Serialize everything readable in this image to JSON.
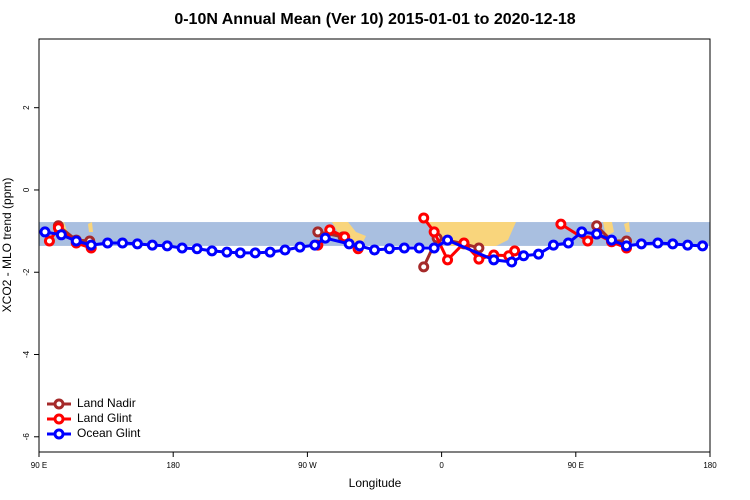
{
  "chart_data": {
    "type": "line",
    "title": "0-10N Annual Mean (Ver 10)   2015-01-01 to 2020-12-18",
    "x_label": "Longitude",
    "y_label": "XCO2 - MLO trend (ppm)",
    "xlim": [
      90,
      540
    ],
    "ylim": [
      -6.37,
      3.67
    ],
    "xticks": [
      {
        "value": 90,
        "label": "90 E"
      },
      180,
      {
        "value": 270,
        "label": "90 W"
      },
      {
        "value": 360,
        "label": "0"
      },
      {
        "value": 450,
        "label": "90 E"
      },
      {
        "value": 540,
        "label": "180"
      }
    ],
    "yticks": [
      -6,
      -4,
      -2,
      0,
      2
    ],
    "band": {
      "ymin": -1.36,
      "ymax": -0.78,
      "color": "#a9bfe0"
    },
    "legend": "bottom-left",
    "series": [
      {
        "name": "Land Nadir",
        "color": "#a52a2a",
        "x": [
          103,
          115,
          124,
          null,
          277,
          294,
          null,
          348,
          357,
          375,
          385,
          null,
          464,
          474,
          484
        ],
        "values": [
          -0.87,
          -1.22,
          -1.24,
          null,
          -1.02,
          -1.14,
          null,
          -1.87,
          -1.17,
          -1.31,
          -1.41,
          null,
          -0.87,
          -1.24,
          -1.24
        ]
      },
      {
        "name": "Land Glint",
        "color": "#ff0000",
        "x": [
          97,
          103,
          115,
          125,
          null,
          277,
          285,
          295,
          304,
          null,
          348,
          355,
          364,
          375,
          385,
          395,
          405,
          409,
          null,
          440,
          458,
          464,
          474,
          484
        ],
        "values": [
          -1.24,
          -0.92,
          -1.29,
          -1.41,
          null,
          -1.34,
          -0.97,
          -1.14,
          -1.43,
          null,
          -0.68,
          -1.02,
          -1.7,
          -1.29,
          -1.68,
          -1.58,
          -1.6,
          -1.48,
          null,
          -0.83,
          -1.24,
          -1.07,
          -1.26,
          -1.41
        ]
      },
      {
        "name": "Ocean Glint",
        "color": "#0000ff",
        "x": [
          94,
          105,
          115,
          125,
          136,
          146,
          156,
          166,
          176,
          186,
          196,
          206,
          216,
          225,
          235,
          245,
          255,
          265,
          275,
          282,
          298,
          305,
          315,
          325,
          335,
          345,
          355,
          364,
          395,
          407,
          415,
          425,
          435,
          445,
          454,
          464,
          474,
          484,
          494,
          505,
          515,
          525,
          535
        ],
        "values": [
          -1.02,
          -1.09,
          -1.24,
          -1.34,
          -1.29,
          -1.29,
          -1.31,
          -1.34,
          -1.36,
          -1.41,
          -1.43,
          -1.48,
          -1.51,
          -1.53,
          -1.53,
          -1.51,
          -1.46,
          -1.39,
          -1.34,
          -1.17,
          -1.31,
          -1.36,
          -1.46,
          -1.43,
          -1.41,
          -1.41,
          -1.41,
          -1.22,
          -1.7,
          -1.75,
          -1.6,
          -1.56,
          -1.34,
          -1.29,
          -1.02,
          -1.07,
          -1.22,
          -1.36,
          -1.31,
          -1.29,
          -1.31,
          -1.34,
          -1.36
        ]
      }
    ]
  }
}
